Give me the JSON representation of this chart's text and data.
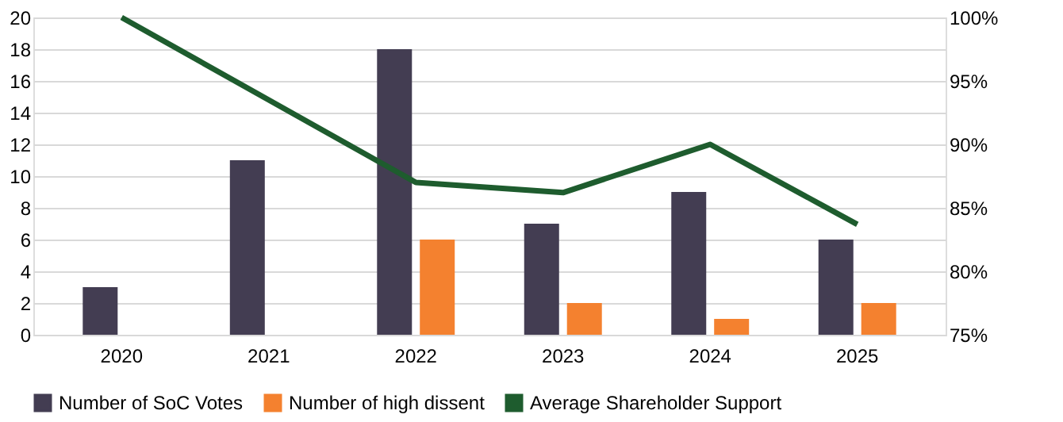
{
  "chart_data": {
    "type": "bar",
    "categories": [
      "2020",
      "2021",
      "2022",
      "2023",
      "2024",
      "2025"
    ],
    "series": [
      {
        "name": "Number of SoC Votes",
        "color": "#433d52",
        "values": [
          3,
          11,
          18,
          7,
          9,
          6
        ]
      },
      {
        "name": "Number of high dissent",
        "color": "#f4812f",
        "values": [
          null,
          null,
          6,
          2,
          1,
          2
        ]
      },
      {
        "name": "Average Shareholder Support",
        "color": "#1e5c2e",
        "type": "line",
        "axis": "y2",
        "values": [
          100,
          93.5,
          87,
          86.2,
          90,
          83.7
        ]
      }
    ],
    "ylim": [
      0,
      20
    ],
    "yticks": [
      0,
      2,
      4,
      6,
      8,
      10,
      12,
      14,
      16,
      18,
      20
    ],
    "y2lim": [
      75,
      100
    ],
    "y2ticks": [
      {
        "value": 75,
        "label": "75%"
      },
      {
        "value": 80,
        "label": "80%"
      },
      {
        "value": 85,
        "label": "85%"
      },
      {
        "value": 90,
        "label": "90%"
      },
      {
        "value": 95,
        "label": "95%"
      },
      {
        "value": 100,
        "label": "100%"
      }
    ],
    "grid": "y",
    "legend": "bottom"
  }
}
